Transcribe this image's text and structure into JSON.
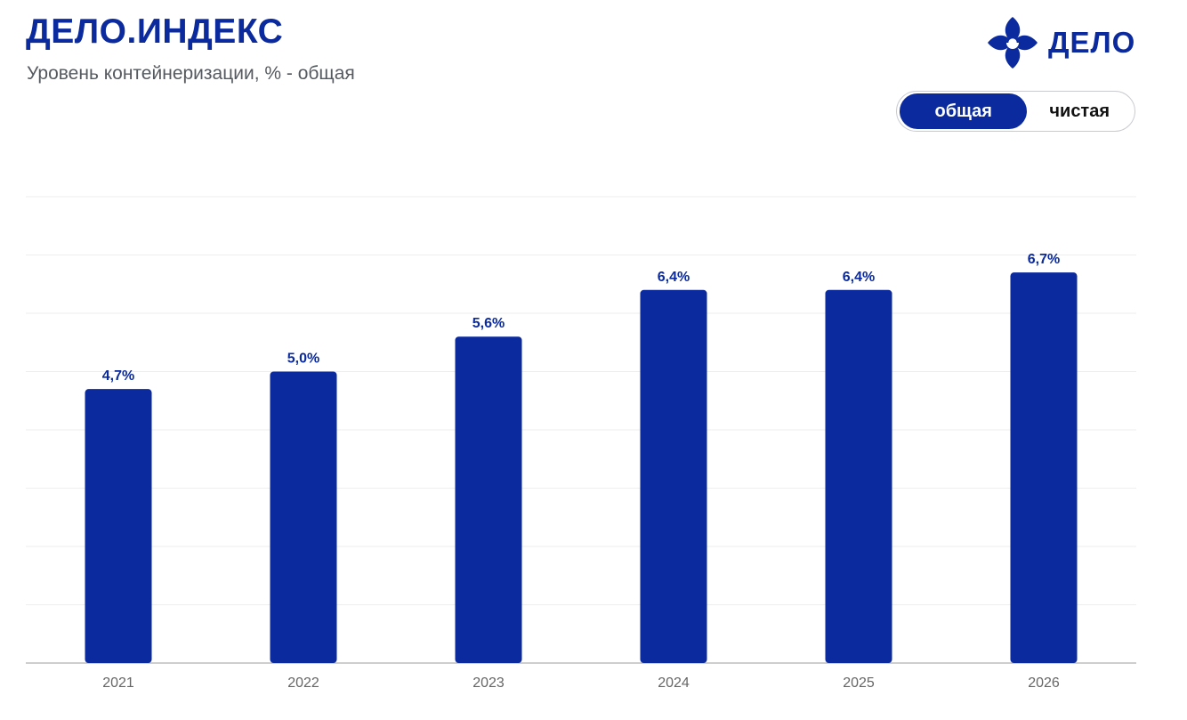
{
  "header": {
    "title": "ДЕЛО.ИНДЕКС",
    "subtitle": "Уровень контейнеризации, % - общая"
  },
  "logo": {
    "text": "ДЕЛО",
    "icon": "delo-logo-icon"
  },
  "toggle": {
    "options": [
      {
        "label": "общая",
        "active": true
      },
      {
        "label": "чистая",
        "active": false
      }
    ]
  },
  "colors": {
    "bar": "#0a2a9e",
    "label": "#0a2a9e",
    "axis_text": "#666666",
    "grid": "#eeeeee"
  },
  "chart_data": {
    "type": "bar",
    "categories": [
      "2021",
      "2022",
      "2023",
      "2024",
      "2025",
      "2026"
    ],
    "values": [
      4.7,
      5.0,
      5.6,
      6.4,
      6.4,
      6.7
    ],
    "data_labels": [
      "4,7%",
      "5,0%",
      "5,6%",
      "6,4%",
      "6,4%",
      "6,7%"
    ],
    "ylim": [
      0,
      8
    ],
    "grid": true,
    "legend": "none"
  }
}
